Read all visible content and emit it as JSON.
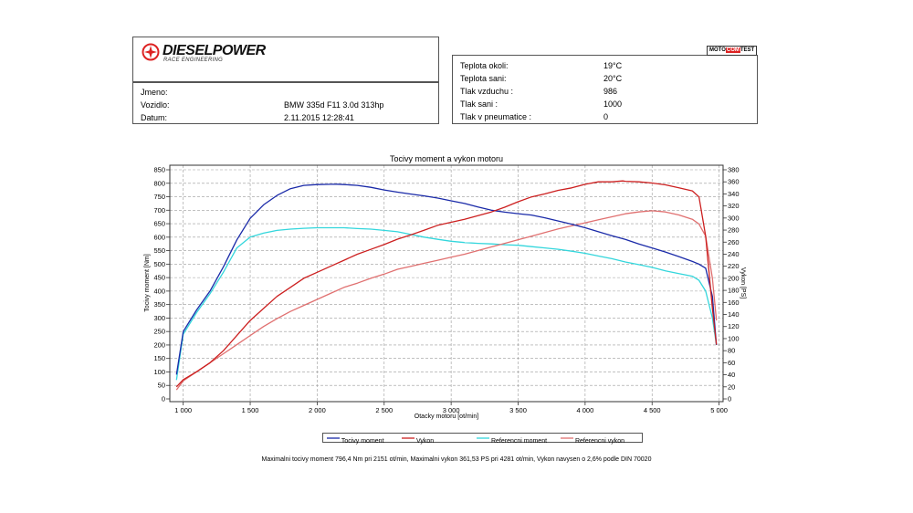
{
  "header": {
    "logo_text": "DIESELPOWER",
    "logo_subtext": "RACE ENGINEERING",
    "badge_left": "MOTO",
    "badge_mid": "COM",
    "badge_right": "TEST"
  },
  "vehicle": {
    "name_label": "Jmeno:",
    "name_value": "",
    "vehicle_label": "Vozidlo:",
    "vehicle_value": "BMW 335d F11 3.0d 313hp",
    "date_label": "Datum:",
    "date_value": "2.11.2015 12:28:41"
  },
  "conditions": [
    {
      "label": "Teplota okoli:",
      "value": "19°C"
    },
    {
      "label": "Teplota sani:",
      "value": "20°C"
    },
    {
      "label": "Tlak vzduchu :",
      "value": "986"
    },
    {
      "label": "Tlak sani :",
      "value": "1000"
    },
    {
      "label": "Tlak v pneumatice :",
      "value": "0"
    }
  ],
  "footer": "Maximalni tocivy moment 796,4 Nm pri 2151 ot/min,  Maximalni vykon 361,53 PS pri 4281 ot/min,  Vykon navysen o 2,6% podle DIN 70020",
  "chart_data": {
    "type": "line",
    "title": "Tocivy moment a vykon motoru",
    "xlabel": "Otacky motoru [ot/min]",
    "ylabel": "Tocivy moment [Nm]",
    "y2label": "Vykon [PS]",
    "xlim": [
      900,
      5030
    ],
    "ylim": [
      0,
      850
    ],
    "y2lim": [
      0,
      380
    ],
    "x_ticks": [
      1000,
      1500,
      2000,
      2500,
      3000,
      3500,
      4000,
      4500,
      5000
    ],
    "x_tick_labels": [
      "1 000",
      "1 500",
      "2 000",
      "2 500",
      "3 000",
      "3 500",
      "4 000",
      "4 500",
      "5 000"
    ],
    "y_ticks": [
      0,
      50,
      100,
      150,
      200,
      250,
      300,
      350,
      400,
      450,
      500,
      550,
      600,
      650,
      700,
      750,
      800,
      850
    ],
    "y2_ticks": [
      0,
      20,
      40,
      60,
      80,
      100,
      120,
      140,
      160,
      180,
      200,
      220,
      240,
      260,
      280,
      300,
      320,
      340,
      360,
      380
    ],
    "grid": true,
    "legend_position": "bottom",
    "series": [
      {
        "name": "Tocivy moment",
        "axis": "left",
        "color": "#1a2aa8",
        "x": [
          950,
          1000,
          1100,
          1200,
          1300,
          1400,
          1500,
          1600,
          1700,
          1800,
          1900,
          2000,
          2100,
          2151,
          2200,
          2300,
          2400,
          2500,
          2600,
          2700,
          2800,
          2900,
          3000,
          3100,
          3200,
          3300,
          3400,
          3500,
          3600,
          3700,
          3800,
          3900,
          4000,
          4100,
          4200,
          4300,
          4400,
          4500,
          4600,
          4700,
          4800,
          4850,
          4900,
          4950,
          4980
        ],
        "y": [
          90,
          250,
          330,
          400,
          490,
          590,
          670,
          720,
          755,
          780,
          792,
          795,
          796,
          796.4,
          795,
          792,
          785,
          775,
          767,
          760,
          753,
          745,
          735,
          725,
          712,
          700,
          693,
          687,
          682,
          672,
          660,
          648,
          635,
          620,
          605,
          592,
          575,
          560,
          545,
          528,
          510,
          500,
          485,
          380,
          200
        ]
      },
      {
        "name": "Vykon",
        "axis": "right",
        "color": "#cc1f1f",
        "x": [
          950,
          1000,
          1100,
          1200,
          1300,
          1400,
          1500,
          1600,
          1700,
          1800,
          1900,
          2000,
          2100,
          2200,
          2300,
          2400,
          2500,
          2600,
          2700,
          2800,
          2900,
          3000,
          3100,
          3200,
          3300,
          3400,
          3500,
          3600,
          3700,
          3800,
          3900,
          4000,
          4100,
          4200,
          4281,
          4300,
          4400,
          4500,
          4600,
          4700,
          4800,
          4850,
          4900,
          4950,
          4980
        ],
        "y": [
          20,
          32,
          45,
          60,
          80,
          105,
          130,
          150,
          170,
          185,
          200,
          210,
          220,
          230,
          240,
          248,
          256,
          265,
          272,
          280,
          288,
          293,
          298,
          304,
          310,
          318,
          327,
          335,
          340,
          346,
          350,
          356,
          360,
          360,
          361.5,
          361,
          360,
          358,
          355,
          350,
          345,
          335,
          270,
          150,
          90
        ]
      },
      {
        "name": "Referencni moment",
        "axis": "left",
        "color": "#33d6dc",
        "x": [
          950,
          1000,
          1100,
          1200,
          1300,
          1400,
          1500,
          1600,
          1700,
          1800,
          1900,
          2000,
          2100,
          2200,
          2300,
          2400,
          2500,
          2600,
          2700,
          2800,
          2900,
          3000,
          3100,
          3200,
          3300,
          3400,
          3500,
          3600,
          3700,
          3800,
          3900,
          4000,
          4100,
          4200,
          4300,
          4400,
          4500,
          4600,
          4700,
          4800,
          4850,
          4900,
          4950,
          4980
        ],
        "y": [
          70,
          240,
          320,
          390,
          470,
          560,
          600,
          615,
          625,
          630,
          633,
          635,
          635,
          635,
          632,
          630,
          625,
          620,
          610,
          600,
          592,
          585,
          580,
          577,
          575,
          572,
          570,
          565,
          560,
          555,
          548,
          540,
          530,
          520,
          508,
          498,
          488,
          475,
          465,
          455,
          440,
          400,
          300,
          200
        ]
      },
      {
        "name": "Referencni vykon",
        "axis": "right",
        "color": "#e07070",
        "x": [
          950,
          1000,
          1100,
          1200,
          1300,
          1400,
          1500,
          1600,
          1700,
          1800,
          1900,
          2000,
          2100,
          2200,
          2300,
          2400,
          2500,
          2600,
          2700,
          2800,
          2900,
          3000,
          3100,
          3200,
          3300,
          3400,
          3500,
          3600,
          3700,
          3800,
          3900,
          4000,
          4100,
          4200,
          4300,
          4400,
          4500,
          4600,
          4700,
          4800,
          4850,
          4900,
          4950,
          4980
        ],
        "y": [
          15,
          30,
          45,
          60,
          75,
          90,
          105,
          120,
          133,
          145,
          155,
          165,
          175,
          185,
          192,
          200,
          207,
          215,
          220,
          225,
          230,
          235,
          240,
          246,
          252,
          258,
          264,
          270,
          276,
          282,
          287,
          292,
          297,
          302,
          307,
          310,
          312,
          310,
          305,
          298,
          290,
          270,
          200,
          130
        ]
      }
    ]
  }
}
